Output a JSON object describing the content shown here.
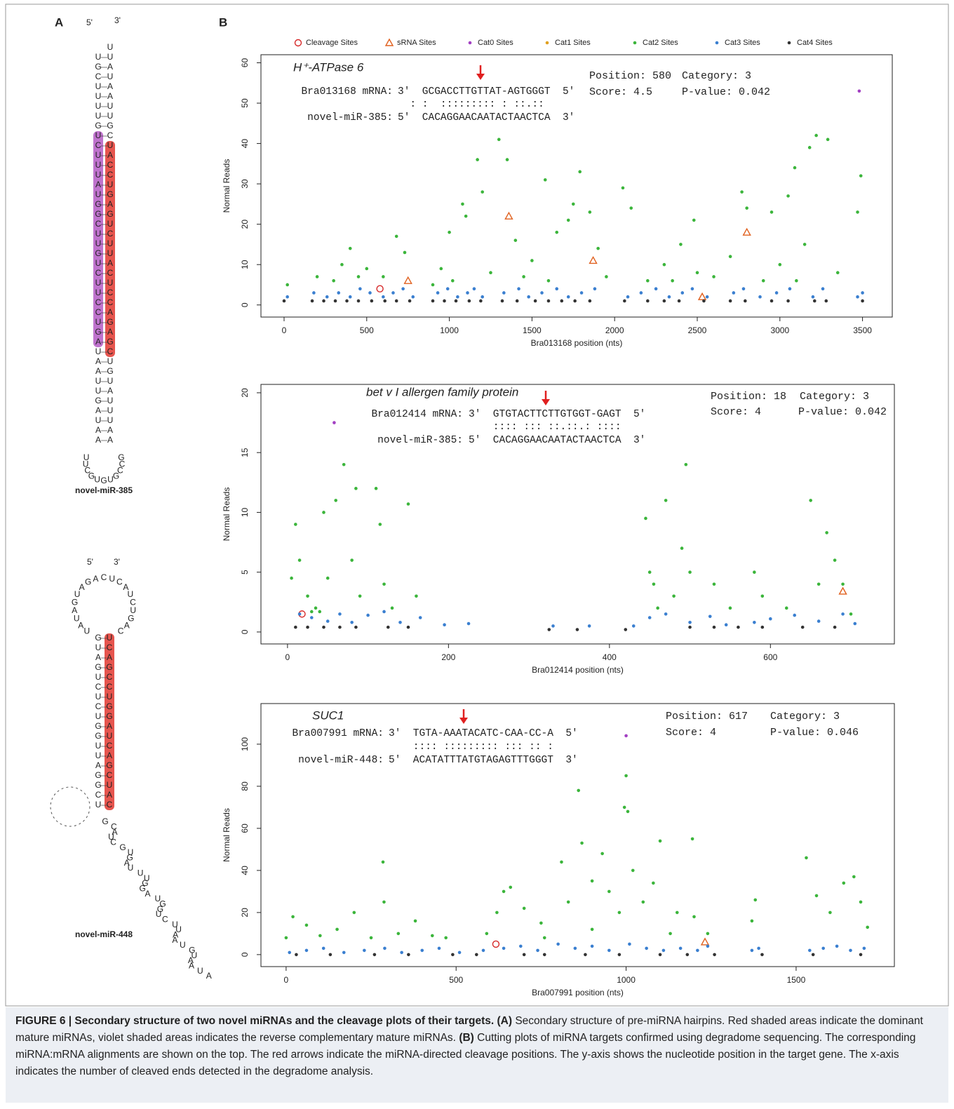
{
  "panel_labels": {
    "a": "A",
    "b": "B"
  },
  "hairpins": [
    {
      "five_prime": "5'",
      "three_prime": "3'",
      "left": "UGCUUUUGUCUUUAUGGCUUGUCUUCCUGAUAAUUGAUAA",
      "right": "UUAUAAUUGCUACCUGAGUCUUACUCCAGAGCUGUAUUUAA",
      "loop": "UUCGUGUGCCG",
      "label": "novel-miR-385"
    },
    {
      "five_prime": "5'",
      "three_prime": "3'",
      "left": "GUAGUCUCUGGUUAGGCU",
      "right": "UCAGCCUGGAUCAGCUAC",
      "loop": "UAUAGUAGACUCAUCUGAC",
      "tail": "GCAUCGUGAUUUGGAUGGUCUUAAUGUAAUA",
      "label": "novel-miR-448"
    }
  ],
  "chart_data": [
    {
      "type": "scatter",
      "title": "H⁺-ATPase 6",
      "x_label": "Bra013168 position (nts)",
      "y_label": "Normal Reads",
      "alignment": {
        "target_label": "Bra013168 mRNA:",
        "target_seq": "3'  GCGACCTTGTTAT-AGTGGGT  5'",
        "match": "  : :  ::::::::: : ::.::",
        "mirna_label": "novel-miR-385:",
        "mirna_seq": "5'  CACAGGAACAATACTAACTCA  3'"
      },
      "info": [
        "Position: 580",
        "Category: 3",
        "Score: 4.5",
        "P-value: 0.042"
      ],
      "xlim": [
        -140,
        3680
      ],
      "ylim": [
        -3,
        62
      ],
      "xticks": [
        0,
        500,
        1000,
        1500,
        2000,
        2500,
        3000,
        3500
      ],
      "yticks": [
        0,
        10,
        20,
        30,
        40,
        50,
        60
      ],
      "series": [
        {
          "name": "Cleavage Sites",
          "color": "#d62828",
          "marker": "open-circle",
          "x": [
            580
          ],
          "values": [
            4
          ]
        },
        {
          "name": "sRNA Sites",
          "color": "#e0601e",
          "marker": "open-triangle",
          "x": [
            750,
            1360,
            1870,
            2530,
            2800
          ],
          "values": [
            6,
            22,
            11,
            2,
            18
          ]
        },
        {
          "name": "Cat0 Sites",
          "color": "#a23fc2",
          "marker": "dot",
          "x": [
            3480
          ],
          "values": [
            53
          ]
        },
        {
          "name": "Cat1 Sites",
          "color": "#e0a020",
          "marker": "dot",
          "x": [],
          "values": []
        },
        {
          "name": "Cat2 Sites",
          "color": "#3bb53b",
          "marker": "dot",
          "x": [
            20,
            200,
            350,
            400,
            500,
            680,
            730,
            950,
            1000,
            1080,
            1100,
            1170,
            1200,
            1300,
            1350,
            1400,
            1500,
            1580,
            1650,
            1720,
            1750,
            1790,
            1850,
            1900,
            2050,
            2100,
            2300,
            2400,
            2480,
            2500,
            2700,
            2770,
            2800,
            2950,
            3050,
            3090,
            3180,
            3220,
            3290,
            3490,
            3470,
            3100,
            2200,
            1600,
            600,
            900,
            300,
            450,
            1020,
            1250,
            1450,
            1950,
            2350,
            2600,
            2900,
            3000,
            3350,
            3150
          ],
          "values": [
            5,
            7,
            10,
            14,
            9,
            17,
            13,
            9,
            18,
            25,
            22,
            36,
            28,
            41,
            36,
            16,
            11,
            31,
            18,
            21,
            25,
            33,
            23,
            14,
            29,
            24,
            10,
            15,
            21,
            8,
            12,
            28,
            24,
            23,
            27,
            34,
            39,
            42,
            41,
            32,
            23,
            6,
            6,
            6,
            7,
            5,
            6,
            7,
            6,
            8,
            7,
            7,
            6,
            7,
            6,
            10,
            8,
            15
          ]
        },
        {
          "name": "Cat3 Sites",
          "color": "#3a7fd0",
          "marker": "dot",
          "x": [
            20,
            180,
            260,
            330,
            400,
            460,
            520,
            600,
            660,
            720,
            780,
            930,
            990,
            1050,
            1110,
            1150,
            1200,
            1330,
            1420,
            1480,
            1560,
            1650,
            1720,
            1800,
            1880,
            2080,
            2160,
            2250,
            2330,
            2410,
            2470,
            2560,
            2720,
            2780,
            2880,
            2980,
            3060,
            3200,
            3260,
            3470,
            3500
          ],
          "values": [
            2,
            3,
            2,
            3,
            2,
            4,
            3,
            2,
            3,
            4,
            2,
            3,
            4,
            2,
            3,
            4,
            2,
            3,
            4,
            2,
            3,
            4,
            2,
            3,
            4,
            2,
            3,
            4,
            2,
            3,
            4,
            2,
            3,
            4,
            2,
            3,
            4,
            2,
            4,
            2,
            3
          ]
        },
        {
          "name": "Cat4 Sites",
          "color": "#333333",
          "marker": "dot",
          "x": [
            0,
            170,
            240,
            310,
            380,
            450,
            530,
            610,
            680,
            760,
            900,
            970,
            1040,
            1120,
            1190,
            1320,
            1410,
            1520,
            1600,
            1680,
            1760,
            1850,
            2060,
            2200,
            2300,
            2390,
            2540,
            2700,
            2790,
            2950,
            3050,
            3210,
            3280,
            3500
          ],
          "values": [
            1,
            1,
            1,
            1,
            1,
            1,
            1,
            1,
            1,
            1,
            1,
            1,
            1,
            1,
            1,
            1,
            1,
            1,
            1,
            1,
            1,
            1,
            1,
            1,
            1,
            1,
            1,
            1,
            1,
            1,
            1,
            1,
            1,
            1
          ]
        }
      ]
    },
    {
      "type": "scatter",
      "title": "bet v I allergen family protein",
      "x_label": "Bra012414 position (nts)",
      "y_label": "Normal Reads",
      "alignment": {
        "target_label": "Bra012414 mRNA:",
        "target_seq": "3'  GTGTACTTCTTGTGGT-GAGT  5'",
        "match": "    :::: ::: ::.::.: ::::",
        "mirna_label": "novel-miR-385:",
        "mirna_seq": "5'  CACAGGAACAATACTAACTCA  3'"
      },
      "info": [
        "Position: 18",
        "Category: 3",
        "Score: 4",
        "P-value: 0.042"
      ],
      "xlim": [
        -33,
        754
      ],
      "ylim": [
        -1,
        20.7
      ],
      "xticks": [
        0,
        200,
        400,
        600
      ],
      "yticks": [
        0,
        5,
        10,
        15,
        20
      ],
      "series": [
        {
          "color": "#d62828",
          "marker": "open-circle",
          "x": [
            18
          ],
          "values": [
            1.5
          ]
        },
        {
          "color": "#e0601e",
          "marker": "open-triangle",
          "x": [
            690
          ],
          "values": [
            3.4
          ]
        },
        {
          "color": "#a23fc2",
          "marker": "dot",
          "x": [
            58
          ],
          "values": [
            17.5
          ]
        },
        {
          "color": "#e0a020",
          "marker": "dot",
          "x": [],
          "values": []
        },
        {
          "color": "#3bb53b",
          "marker": "dot",
          "x": [
            5,
            10,
            15,
            25,
            35,
            45,
            50,
            60,
            70,
            80,
            85,
            90,
            110,
            115,
            120,
            130,
            150,
            160,
            445,
            450,
            470,
            480,
            490,
            495,
            500,
            530,
            550,
            580,
            590,
            620,
            650,
            660,
            670,
            680,
            690,
            700,
            460,
            455,
            30,
            40
          ],
          "values": [
            4.5,
            9,
            6,
            3,
            2,
            10,
            4.5,
            11,
            14,
            6,
            12,
            3,
            12,
            9,
            4,
            2,
            10.7,
            3,
            9.5,
            5,
            11,
            3,
            7,
            14,
            5,
            4,
            2,
            5,
            3,
            2,
            11,
            4,
            8.3,
            6,
            4,
            1.5,
            2,
            4,
            1.7,
            1.7
          ]
        },
        {
          "color": "#3a7fd0",
          "marker": "dot",
          "x": [
            15,
            30,
            50,
            65,
            80,
            100,
            120,
            140,
            165,
            195,
            225,
            330,
            375,
            430,
            450,
            470,
            500,
            525,
            545,
            580,
            600,
            630,
            660,
            690,
            705
          ],
          "values": [
            1.5,
            1.2,
            0.9,
            1.5,
            0.8,
            1.4,
            1.7,
            0.8,
            1.2,
            0.6,
            0.7,
            0.5,
            0.5,
            0.5,
            1.2,
            1.5,
            0.8,
            1.3,
            0.6,
            0.8,
            1.1,
            1.4,
            0.9,
            1.5,
            0.7
          ]
        },
        {
          "color": "#333333",
          "marker": "dot",
          "x": [
            10,
            25,
            45,
            65,
            85,
            125,
            150,
            325,
            360,
            420,
            500,
            530,
            560,
            590,
            640,
            680
          ],
          "values": [
            0.4,
            0.4,
            0.4,
            0.4,
            0.4,
            0.4,
            0.4,
            0.2,
            0.2,
            0.2,
            0.4,
            0.4,
            0.4,
            0.4,
            0.4,
            0.4
          ]
        }
      ]
    },
    {
      "type": "scatter",
      "title": "SUC1",
      "x_label": "Bra007991 position (nts)",
      "y_label": "Normal Reads",
      "alignment": {
        "target_label": "Bra007991 mRNA:",
        "target_seq": "3'  TGTA-AAATACATC-CAA-CC-A  5'",
        "match": "    :::: ::::::::: ::: :: :",
        "mirna_label": "novel-miR-448:",
        "mirna_seq": "5'  ACATATTTATGTAGAGTTTGGGT  3'"
      },
      "info": [
        "Position: 617",
        "Category: 3",
        "Score: 4",
        "P-value: 0.046"
      ],
      "xlim": [
        -74,
        1789
      ],
      "ylim": [
        -5.7,
        119.3
      ],
      "xticks": [
        0,
        500,
        1000,
        1500
      ],
      "yticks": [
        0,
        20,
        40,
        60,
        80,
        100
      ],
      "series": [
        {
          "color": "#d62828",
          "marker": "open-circle",
          "x": [
            617
          ],
          "values": [
            5
          ]
        },
        {
          "color": "#e0601e",
          "marker": "open-triangle",
          "x": [
            1232
          ],
          "values": [
            6
          ]
        },
        {
          "color": "#a23fc2",
          "marker": "dot",
          "x": [
            1000
          ],
          "values": [
            104
          ]
        },
        {
          "color": "#e0a020",
          "marker": "dot",
          "x": [],
          "values": []
        },
        {
          "color": "#3bb53b",
          "marker": "dot",
          "x": [
            0,
            20,
            60,
            100,
            150,
            200,
            250,
            285,
            288,
            330,
            380,
            430,
            470,
            590,
            620,
            640,
            660,
            700,
            750,
            810,
            830,
            860,
            870,
            900,
            930,
            950,
            980,
            995,
            1000,
            1005,
            1020,
            1050,
            1080,
            1100,
            1150,
            1195,
            1200,
            1240,
            1370,
            1380,
            1530,
            1560,
            1600,
            1640,
            1670,
            1690,
            1710,
            760,
            900,
            1130
          ],
          "values": [
            8,
            18,
            14,
            9,
            12,
            20,
            8,
            44,
            25,
            10,
            16,
            9,
            8,
            10,
            20,
            30,
            32,
            22,
            15,
            44,
            25,
            78,
            53,
            35,
            48,
            30,
            20,
            70,
            85,
            68,
            40,
            25,
            34,
            54,
            20,
            55,
            18,
            10,
            16,
            26,
            46,
            28,
            20,
            34,
            37,
            25,
            13,
            8,
            12,
            10
          ]
        },
        {
          "color": "#3a7fd0",
          "marker": "dot",
          "x": [
            10,
            60,
            110,
            170,
            230,
            290,
            340,
            400,
            450,
            510,
            580,
            640,
            690,
            740,
            800,
            850,
            900,
            950,
            1010,
            1060,
            1110,
            1160,
            1210,
            1240,
            1370,
            1390,
            1540,
            1580,
            1620,
            1660,
            1700
          ],
          "values": [
            1,
            2,
            3,
            1,
            2,
            3,
            1,
            2,
            3,
            1,
            2,
            3,
            4,
            2,
            5,
            3,
            4,
            2,
            5,
            3,
            2,
            3,
            2,
            4,
            2,
            3,
            2,
            3,
            4,
            2,
            3
          ]
        },
        {
          "color": "#333333",
          "marker": "dot",
          "x": [
            30,
            130,
            260,
            360,
            490,
            560,
            700,
            760,
            880,
            980,
            1100,
            1180,
            1260,
            1400,
            1550,
            1690
          ],
          "values": [
            0,
            0,
            0,
            0,
            0,
            0,
            0,
            0,
            0,
            0,
            0,
            0,
            0,
            0,
            0,
            0
          ]
        }
      ]
    }
  ],
  "caption": {
    "title": "FIGURE 6 | Secondary structure of two novel miRNAs and the cleavage plots of their targets.",
    "a_label": "(A)",
    "a_text": "Secondary structure of pre-miRNA hairpins. Red shaded areas indicate the dominant mature miRNAs, violet shaded areas indicates the reverse complementary mature miRNAs.",
    "b_label": "(B)",
    "b_text": "Cutting plots of miRNA targets confirmed using degradome sequencing. The corresponding miRNA:mRNA alignments are shown on the top. The red arrows indicate the miRNA-directed cleavage positions. The y-axis shows the nucleotide position in the target gene. The x-axis indicates the number of cleaved ends detected in the degradome analysis."
  }
}
